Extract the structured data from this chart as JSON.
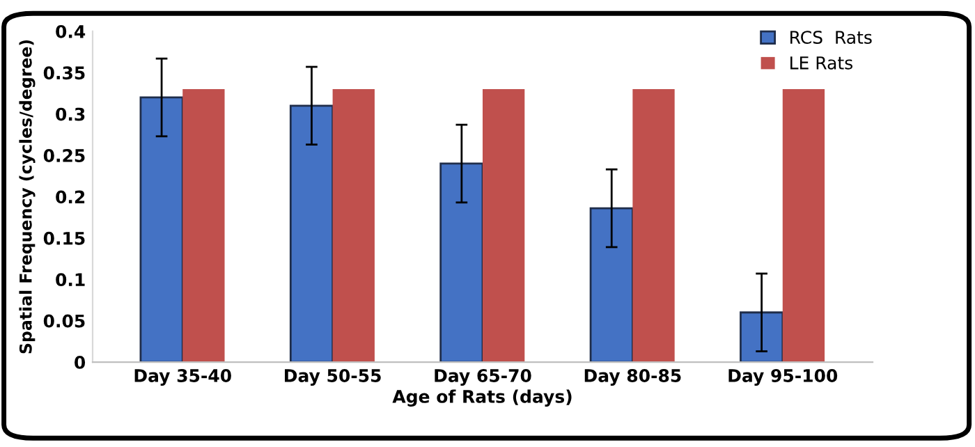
{
  "chart_data": {
    "type": "bar",
    "xlabel": "Age of Rats (days)",
    "ylabel": "Spatial Frequency (cycles/degree)",
    "categories": [
      "Day 35-40",
      "Day 50-55",
      "Day 65-70",
      "Day 80-85",
      "Day 95-100"
    ],
    "series": [
      {
        "name": "RCS  Rats",
        "color": "#4472c4",
        "values": [
          0.32,
          0.31,
          0.24,
          0.186,
          0.06
        ],
        "errors": [
          0.047,
          0.047,
          0.047,
          0.047,
          0.047
        ]
      },
      {
        "name": "LE Rats",
        "color": "#c0504d",
        "values": [
          0.33,
          0.33,
          0.33,
          0.33,
          0.33
        ]
      }
    ],
    "ylim": [
      0,
      0.4
    ],
    "yticks": [
      {
        "value": 0,
        "label": "0"
      },
      0.05,
      0.1,
      0.15,
      0.2,
      0.25,
      0.3,
      0.35,
      0.4
    ],
    "grid": false,
    "legend": "top right"
  }
}
